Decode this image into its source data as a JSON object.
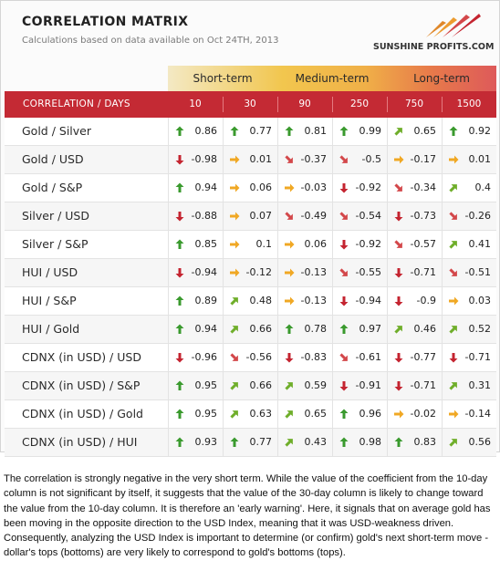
{
  "header": {
    "title": "CORRELATION MATRIX",
    "subtitle": "Calculations based on data available on Oct 24TH, 2013",
    "logo_text": "SUNSHINE PROFITS.COM"
  },
  "periods": [
    "Short-term",
    "Medium-term",
    "Long-term"
  ],
  "table": {
    "row_header": "CORRELATION / DAYS",
    "days": [
      "10",
      "30",
      "90",
      "250",
      "750",
      "1500"
    ],
    "rows": [
      {
        "pair": "Gold / Silver",
        "values": [
          "0.86",
          "0.77",
          "0.81",
          "0.99",
          "0.65",
          "0.92"
        ],
        "arrows": [
          "up",
          "up",
          "up",
          "up",
          "up-right",
          "up"
        ]
      },
      {
        "pair": "Gold / USD",
        "values": [
          "-0.98",
          "0.01",
          "-0.37",
          "-0.5",
          "-0.17",
          "0.01"
        ],
        "arrows": [
          "down",
          "right",
          "down-right",
          "down-right",
          "right",
          "right"
        ]
      },
      {
        "pair": "Gold / S&P",
        "values": [
          "0.94",
          "0.06",
          "-0.03",
          "-0.92",
          "-0.34",
          "0.4"
        ],
        "arrows": [
          "up",
          "right",
          "right",
          "down",
          "down-right",
          "up-right"
        ]
      },
      {
        "pair": "Silver / USD",
        "values": [
          "-0.88",
          "0.07",
          "-0.49",
          "-0.54",
          "-0.73",
          "-0.26"
        ],
        "arrows": [
          "down",
          "right",
          "down-right",
          "down-right",
          "down",
          "down-right"
        ]
      },
      {
        "pair": "Silver / S&P",
        "values": [
          "0.85",
          "0.1",
          "0.06",
          "-0.92",
          "-0.57",
          "0.41"
        ],
        "arrows": [
          "up",
          "right",
          "right",
          "down",
          "down-right",
          "up-right"
        ]
      },
      {
        "pair": "HUI / USD",
        "values": [
          "-0.94",
          "-0.12",
          "-0.13",
          "-0.55",
          "-0.71",
          "-0.51"
        ],
        "arrows": [
          "down",
          "right",
          "right",
          "down-right",
          "down",
          "down-right"
        ]
      },
      {
        "pair": "HUI / S&P",
        "values": [
          "0.89",
          "0.48",
          "-0.13",
          "-0.94",
          "-0.9",
          "0.03"
        ],
        "arrows": [
          "up",
          "up-right",
          "right",
          "down",
          "down",
          "right"
        ]
      },
      {
        "pair": "HUI / Gold",
        "values": [
          "0.94",
          "0.66",
          "0.78",
          "0.97",
          "0.46",
          "0.52"
        ],
        "arrows": [
          "up",
          "up-right",
          "up",
          "up",
          "up-right",
          "up-right"
        ]
      },
      {
        "pair": "CDNX (in USD) / USD",
        "values": [
          "-0.96",
          "-0.56",
          "-0.83",
          "-0.61",
          "-0.77",
          "-0.71"
        ],
        "arrows": [
          "down",
          "down-right",
          "down",
          "down-right",
          "down",
          "down"
        ]
      },
      {
        "pair": "CDNX (in USD) / S&P",
        "values": [
          "0.95",
          "0.66",
          "0.59",
          "-0.91",
          "-0.71",
          "0.31"
        ],
        "arrows": [
          "up",
          "up-right",
          "up-right",
          "down",
          "down",
          "up-right"
        ]
      },
      {
        "pair": "CDNX (in USD) / Gold",
        "values": [
          "0.95",
          "0.63",
          "0.65",
          "0.96",
          "-0.02",
          "-0.14"
        ],
        "arrows": [
          "up",
          "up-right",
          "up-right",
          "up",
          "right",
          "right"
        ]
      },
      {
        "pair": "CDNX (in USD) / HUI",
        "values": [
          "0.93",
          "0.77",
          "0.43",
          "0.98",
          "0.83",
          "0.56"
        ],
        "arrows": [
          "up",
          "up",
          "up-right",
          "up",
          "up",
          "up-right"
        ]
      }
    ]
  },
  "arrow_colors": {
    "up": "#3a9a2e",
    "up-right": "#6fae2a",
    "right": "#f0a824",
    "down-right": "#d3474a",
    "down": "#c42430"
  },
  "description": "The correlation is strongly negative in the very short term. While the value of the coefficient from the 10-day column is not significant by itself, it suggests that the value of the 30-day column is likely to change toward the value from the 10-day column. It is therefore an 'early warning'. Here, it signals that on average gold has been moving in the opposite direction to the USD Index, meaning that it was USD-weakness driven. Consequently, analyzing the USD Index is important to determine (or confirm) gold's next short-term move - dollar's tops (bottoms) are very likely to correspond to gold's bottoms (tops)."
}
